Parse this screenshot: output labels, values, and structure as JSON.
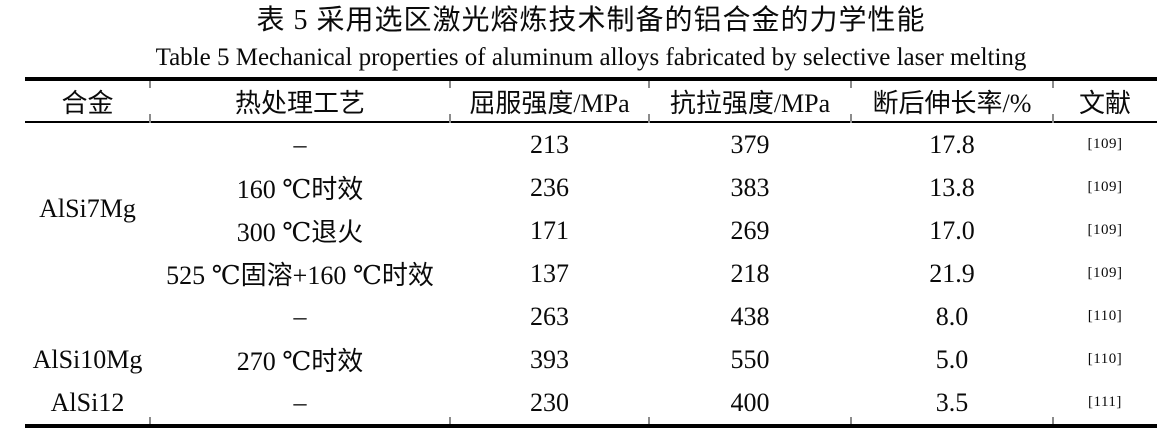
{
  "caption": {
    "zh": "表 5 采用选区激光熔炼技术制备的铝合金的力学性能",
    "en": "Table 5 Mechanical properties of aluminum alloys fabricated by selective laser melting"
  },
  "table": {
    "columns": [
      "合金",
      "热处理工艺",
      "屈服强度/MPa",
      "抗拉强度/MPa",
      "断后伸长率/%",
      "文献"
    ],
    "rows": [
      {
        "alloy": "AlSi7Mg",
        "alloy_rowspan": 4,
        "treatment": "–",
        "yield": "213",
        "tensile": "379",
        "elongation": "17.8",
        "ref": "[109]"
      },
      {
        "treatment": "160 ℃时效",
        "yield": "236",
        "tensile": "383",
        "elongation": "13.8",
        "ref": "[109]"
      },
      {
        "treatment": "300 ℃退火",
        "yield": "171",
        "tensile": "269",
        "elongation": "17.0",
        "ref": "[109]"
      },
      {
        "treatment": "525 ℃固溶+160 ℃时效",
        "yield": "137",
        "tensile": "218",
        "elongation": "21.9",
        "ref": "[109]"
      },
      {
        "alloy": "",
        "alloy_rowspan": 1,
        "treatment": "–",
        "yield": "263",
        "tensile": "438",
        "elongation": "8.0",
        "ref": "[110]"
      },
      {
        "alloy": "AlSi10Mg",
        "alloy_rowspan": 1,
        "treatment": "270 ℃时效",
        "yield": "393",
        "tensile": "550",
        "elongation": "5.0",
        "ref": "[110]"
      },
      {
        "alloy": "AlSi12",
        "alloy_rowspan": 1,
        "treatment": "–",
        "yield": "230",
        "tensile": "400",
        "elongation": "3.5",
        "ref": "[111]"
      }
    ]
  },
  "colors": {
    "text": "#0a0a0a",
    "rule": "#000000",
    "background": "#ffffff"
  }
}
